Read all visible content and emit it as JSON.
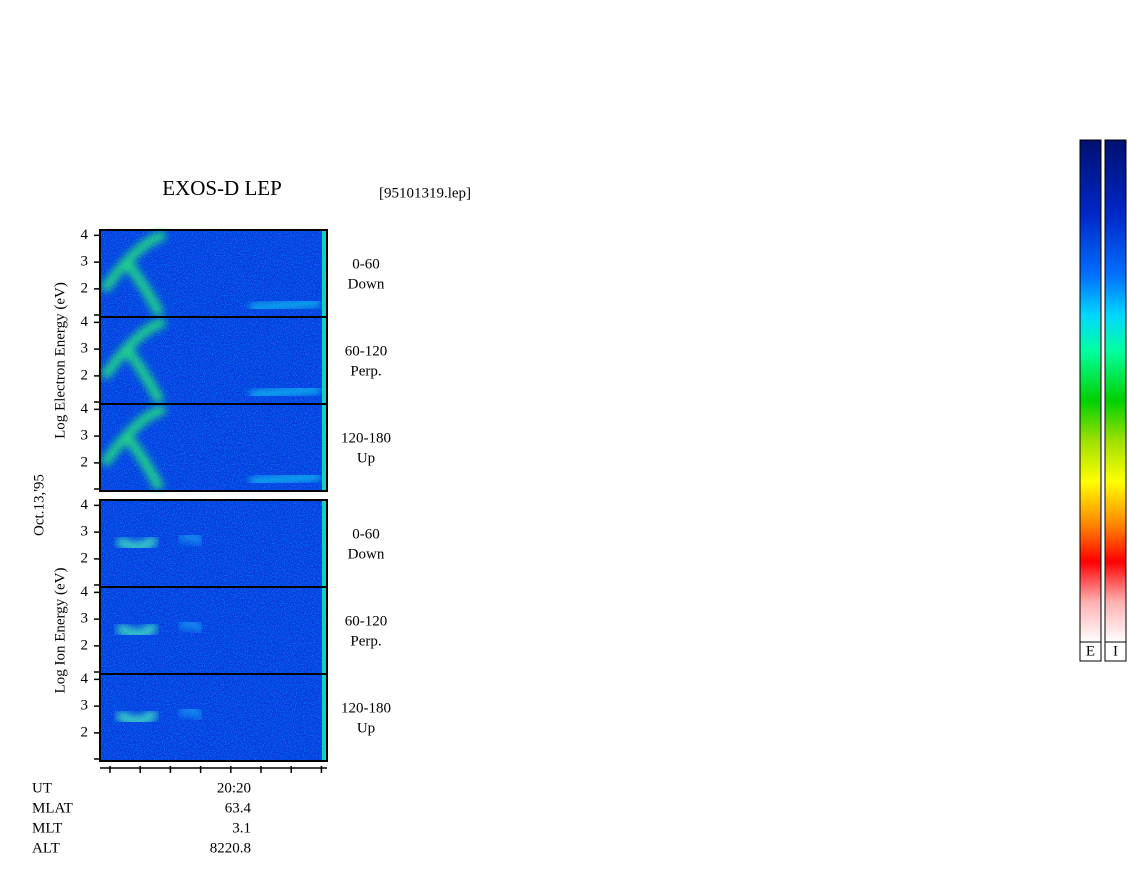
{
  "chart_data": {
    "type": "spectrogram",
    "title": "EXOS-D LEP",
    "file": "[95101319.lep]",
    "date": "Oct.13,'95",
    "ylim": [
      0.95,
      4.2
    ],
    "yticks": [
      2,
      3,
      4
    ],
    "groups": [
      {
        "ylabel": "Log  Electron  Energy  (eV)",
        "panels": [
          {
            "label": [
              "0-60",
              "Down"
            ]
          },
          {
            "label": [
              "60-120",
              "Perp."
            ]
          },
          {
            "label": [
              "120-180",
              "Up"
            ]
          }
        ]
      },
      {
        "ylabel": "Log  Ion  Energy  (eV)",
        "panels": [
          {
            "label": [
              "0-60",
              "Down"
            ]
          },
          {
            "label": [
              "60-120",
              "Perp."
            ]
          },
          {
            "label": [
              "120-180",
              "Up"
            ]
          }
        ]
      }
    ],
    "xtick_label": "20:20",
    "footer": [
      [
        "UT",
        "20:20"
      ],
      [
        "MLAT",
        "63.4"
      ],
      [
        "MLT",
        "3.1"
      ],
      [
        "ALT",
        "8220.8"
      ]
    ],
    "colorbars": [
      "E",
      "I"
    ]
  }
}
